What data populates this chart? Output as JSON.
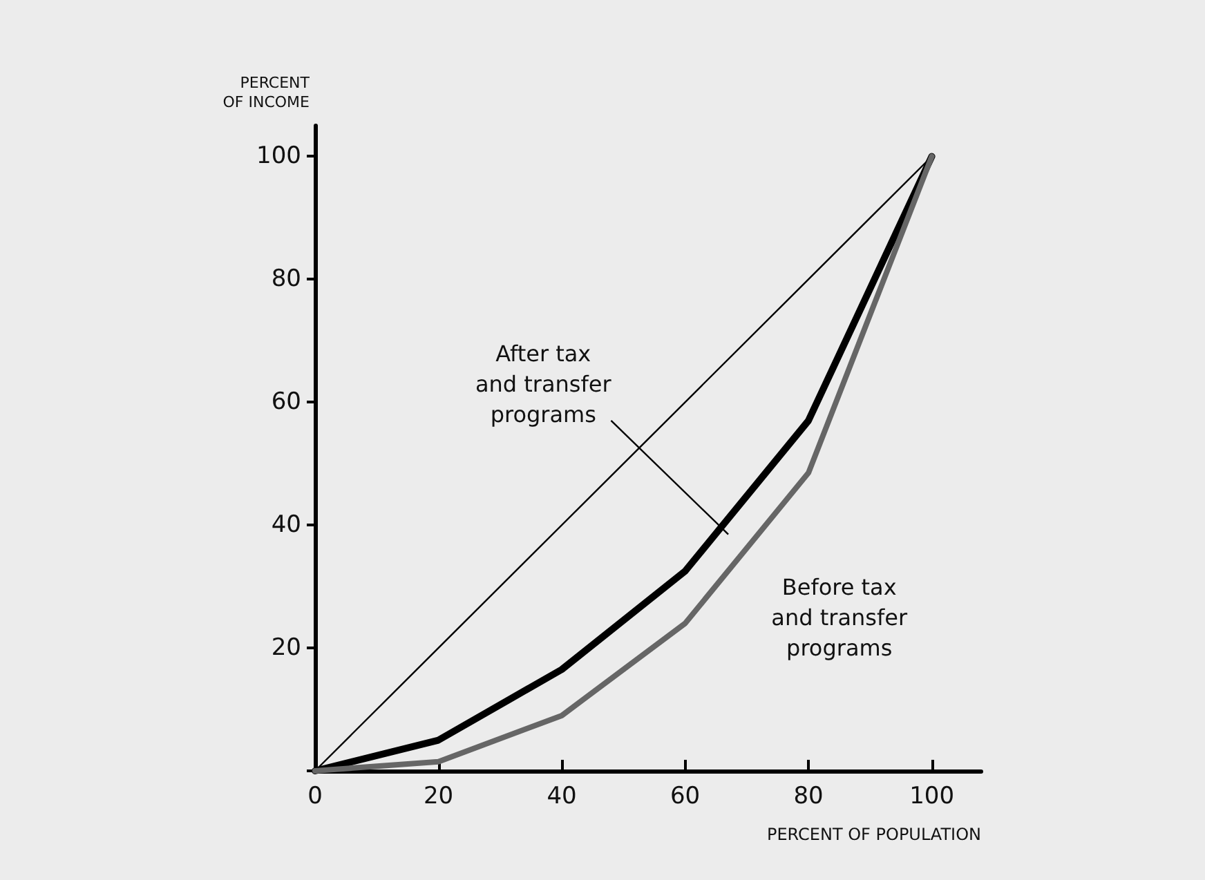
{
  "chart_data": {
    "type": "line",
    "xlabel": "PERCENT OF POPULATION",
    "ylabel": "PERCENT\nOF INCOME",
    "x": [
      0,
      20,
      40,
      60,
      80,
      100
    ],
    "series": [
      {
        "x": [
          0,
          100
        ],
        "values": [
          0,
          100
        ],
        "color": "#000000"
      },
      {
        "values": [
          0,
          5,
          16.5,
          32.5,
          57,
          100
        ],
        "color": "#000000"
      },
      {
        "values": [
          0,
          1.5,
          9,
          24,
          48.5,
          100
        ],
        "color": "#666666"
      }
    ],
    "annotations": [
      "After tax\nand transfer\nprograms",
      "Before tax\nand transfer\nprograms"
    ],
    "xlim": [
      0,
      108
    ],
    "ylim": [
      0,
      105
    ],
    "xticks": [
      0,
      20,
      40,
      60,
      80,
      100
    ],
    "yticks": [
      {
        "value": 0,
        "label": null
      },
      20,
      40,
      60,
      80,
      100
    ],
    "grid": false,
    "marker": "none",
    "line_style": "solid"
  }
}
